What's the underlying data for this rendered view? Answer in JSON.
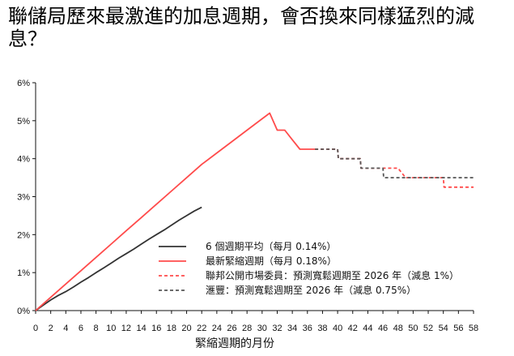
{
  "title": "聯儲局歷來最激進的加息週期，會否換來同樣猛烈的減息？",
  "chart_data": {
    "type": "line",
    "title": "聯儲局歷來最激進的加息週期，會否換來同樣猛烈的減息？",
    "xlabel": "緊縮週期的月份",
    "ylabel": "",
    "xlim": [
      0,
      58
    ],
    "ylim": [
      0,
      6
    ],
    "x_ticks": [
      0,
      2,
      4,
      6,
      8,
      10,
      12,
      14,
      16,
      18,
      20,
      22,
      24,
      26,
      28,
      30,
      32,
      34,
      36,
      38,
      40,
      42,
      44,
      46,
      48,
      50,
      52,
      54,
      56,
      58
    ],
    "y_ticks": [
      "0%",
      "1%",
      "2%",
      "3%",
      "4%",
      "5%",
      "6%"
    ],
    "grid": false,
    "legend_position": "center-right",
    "series": [
      {
        "name": "6 個週期平均（每月 0.14%）",
        "color": "#333333",
        "style": "solid",
        "x": [
          0,
          1,
          2,
          3,
          4,
          5,
          6,
          7,
          8,
          9,
          10,
          11,
          12,
          13,
          14,
          15,
          16,
          17,
          18,
          19,
          20,
          21,
          22
        ],
        "y": [
          0,
          0.14,
          0.28,
          0.4,
          0.5,
          0.62,
          0.75,
          0.87,
          1.0,
          1.12,
          1.25,
          1.38,
          1.5,
          1.62,
          1.75,
          1.88,
          2.0,
          2.12,
          2.25,
          2.38,
          2.5,
          2.62,
          2.72
        ]
      },
      {
        "name": "最新緊縮週期（每月 0.18%）",
        "color": "#ff4b4b",
        "style": "solid",
        "x": [
          0,
          2,
          4,
          6,
          8,
          10,
          12,
          14,
          16,
          18,
          20,
          22,
          24,
          26,
          28,
          29,
          30,
          31,
          32,
          33,
          34,
          35,
          36,
          37
        ],
        "y": [
          0,
          0.35,
          0.7,
          1.05,
          1.4,
          1.75,
          2.1,
          2.45,
          2.8,
          3.15,
          3.5,
          3.85,
          4.15,
          4.45,
          4.75,
          4.9,
          5.05,
          5.2,
          4.75,
          4.75,
          4.5,
          4.25,
          4.25,
          4.25
        ]
      },
      {
        "name": "聯邦公開市場委員：預測寬鬆週期至 2026 年（減息 1%）",
        "color": "#ff4b4b",
        "style": "dashed",
        "x": [
          37,
          38,
          39,
          40,
          40.1,
          42,
          43,
          43.1,
          46,
          46.1,
          48,
          49,
          49.1,
          54,
          54.1,
          56,
          58
        ],
        "y": [
          4.25,
          4.25,
          4.25,
          4.25,
          4.0,
          4.0,
          4.0,
          3.75,
          3.75,
          3.75,
          3.75,
          3.5,
          3.5,
          3.5,
          3.25,
          3.25,
          3.25
        ]
      },
      {
        "name": "滙豐：預測寬鬆週期至 2026 年（減息 0.75%）",
        "color": "#555555",
        "style": "dashed",
        "x": [
          37,
          38,
          39,
          40,
          40.1,
          42,
          43,
          43.1,
          45,
          46,
          46.1,
          48,
          50,
          52,
          54,
          56,
          58
        ],
        "y": [
          4.25,
          4.25,
          4.25,
          4.25,
          4.0,
          4.0,
          4.0,
          3.75,
          3.75,
          3.75,
          3.5,
          3.5,
          3.5,
          3.5,
          3.5,
          3.5,
          3.5
        ]
      }
    ]
  }
}
